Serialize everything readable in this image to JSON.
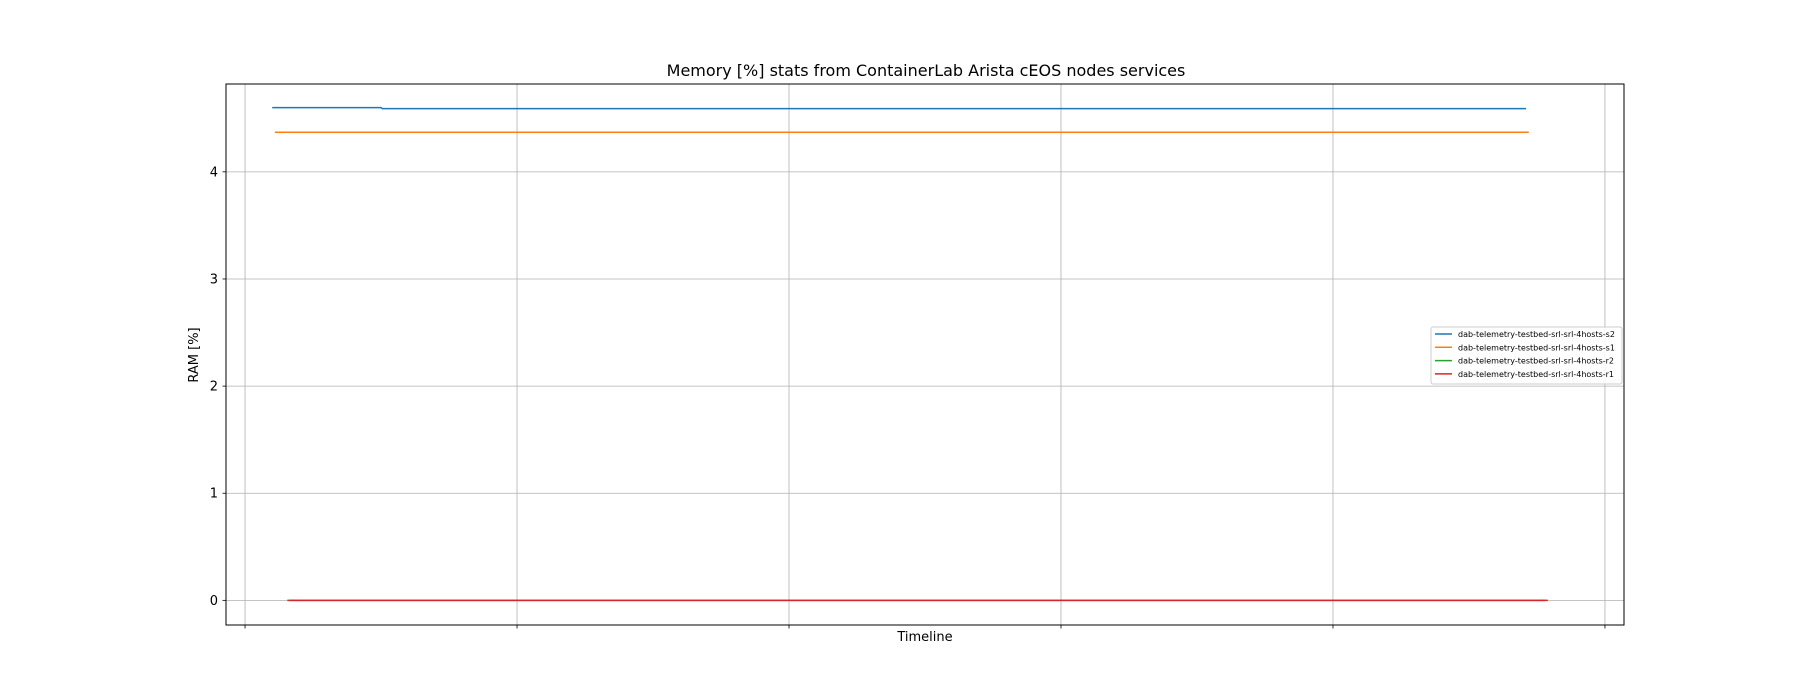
{
  "chart_data": {
    "type": "line",
    "title": "Memory [%] stats from ContainerLab Arista cEOS nodes services",
    "xlabel": "Timeline",
    "ylabel": "RAM [%]",
    "ylim": [
      -0.23,
      4.82
    ],
    "xlim": [
      -0.7,
      50.7
    ],
    "yticks": [
      0,
      1,
      2,
      3,
      4
    ],
    "xticks": [
      0,
      10,
      20,
      30,
      40,
      50
    ],
    "xticklabels": [
      "",
      "",
      "",
      "",
      "",
      ""
    ],
    "grid": true,
    "legend_position": "center-right",
    "series": [
      {
        "name": "dab-telemetry-testbed-srl-srl-4hosts-s2",
        "color": "#1f77b4",
        "x": [
          1.0,
          5.0,
          5.05,
          47.1
        ],
        "y": [
          4.6,
          4.6,
          4.59,
          4.59
        ]
      },
      {
        "name": "dab-telemetry-testbed-srl-srl-4hosts-s1",
        "color": "#ff7f0e",
        "x": [
          1.1,
          47.2
        ],
        "y": [
          4.37,
          4.37
        ]
      },
      {
        "name": "dab-telemetry-testbed-srl-srl-4hosts-r2",
        "color": "#2ca02c",
        "x": [
          1.55,
          47.8
        ],
        "y": [
          0.0,
          0.0
        ]
      },
      {
        "name": "dab-telemetry-testbed-srl-srl-4hosts-r1",
        "color": "#d62728",
        "x": [
          1.6,
          47.9
        ],
        "y": [
          0.0,
          0.0
        ]
      }
    ]
  }
}
